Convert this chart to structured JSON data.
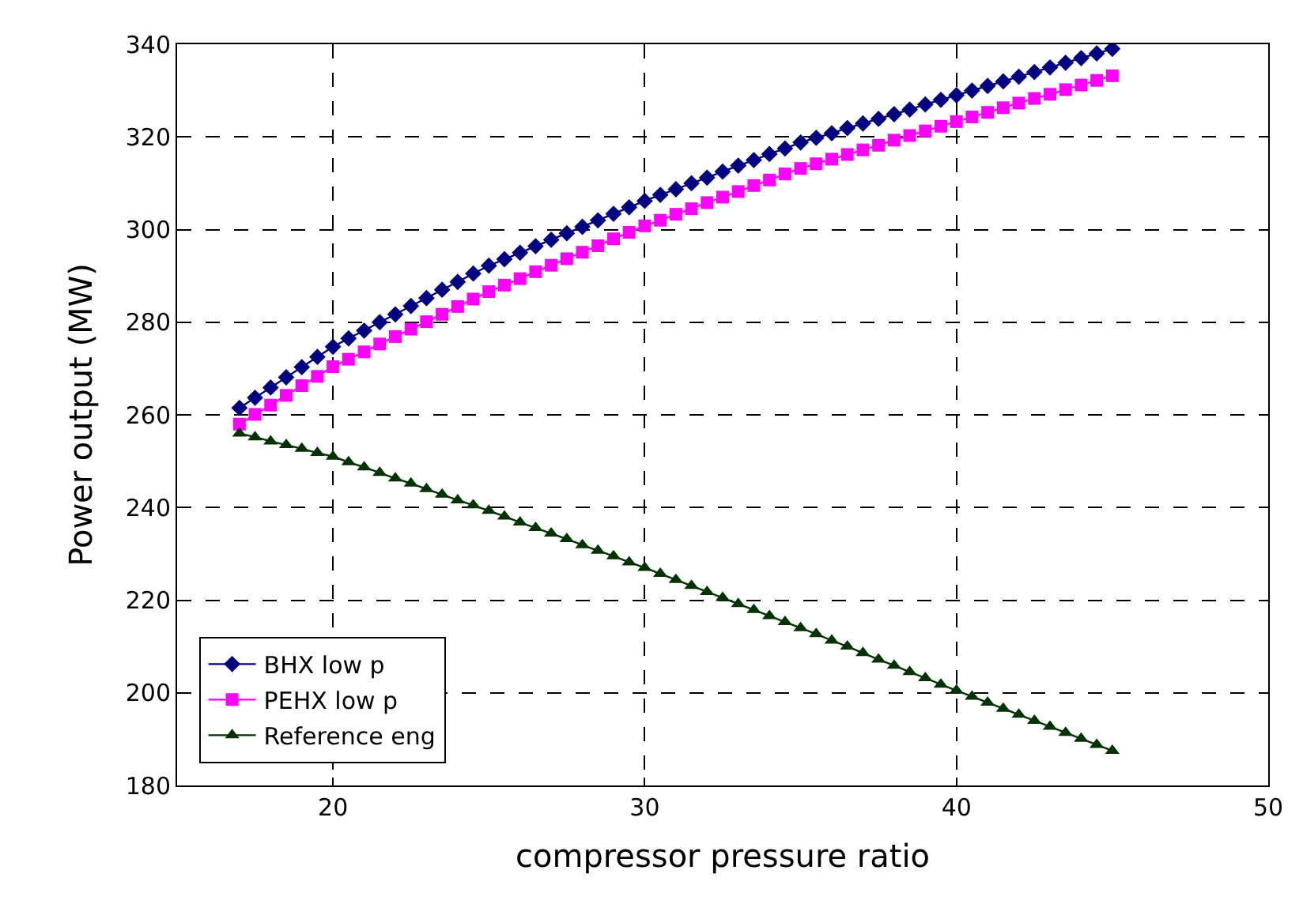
{
  "chart_data": {
    "type": "line",
    "xlabel": "compressor pressure ratio",
    "ylabel": "Power output (MW)",
    "x": [
      17,
      17.5,
      18,
      18.5,
      19,
      19.5,
      20,
      20.5,
      21,
      21.5,
      22,
      22.5,
      23,
      23.5,
      24,
      24.5,
      25,
      25.5,
      26,
      26.5,
      27,
      27.5,
      28,
      28.5,
      29,
      29.5,
      30,
      30.5,
      31,
      31.5,
      32,
      32.5,
      33,
      33.5,
      34,
      34.5,
      35,
      35.5,
      36,
      36.5,
      37,
      37.5,
      38,
      38.5,
      39,
      39.5,
      40,
      40.5,
      41,
      41.5,
      42,
      42.5,
      43,
      43.5,
      44,
      44.5,
      45
    ],
    "series": [
      {
        "name": "BHX low p",
        "color": "#000080",
        "marker": "diamond",
        "values": [
          261.5,
          263.7,
          265.9,
          268.1,
          270.3,
          272.5,
          274.7,
          276.5,
          278.2,
          280.0,
          281.7,
          283.5,
          285.2,
          287.0,
          288.7,
          290.5,
          292.2,
          293.6,
          295.0,
          296.4,
          297.8,
          299.2,
          300.6,
          302.0,
          303.4,
          304.8,
          306.2,
          307.5,
          308.7,
          310.0,
          311.2,
          312.5,
          313.8,
          315.0,
          316.3,
          317.5,
          318.8,
          319.8,
          320.8,
          321.9,
          322.9,
          323.9,
          324.9,
          325.9,
          327.0,
          328.0,
          329.0,
          330,
          331,
          332,
          333,
          334,
          335,
          336,
          337,
          338,
          339
        ]
      },
      {
        "name": "PEHX low p",
        "color": "#ff00ff",
        "marker": "square",
        "values": [
          258,
          260.1,
          262.1,
          264.2,
          266.3,
          268.3,
          270.4,
          272.0,
          273.6,
          275.3,
          276.9,
          278.5,
          280.1,
          281.7,
          283.4,
          285.0,
          286.6,
          288.0,
          289.4,
          290.9,
          292.3,
          293.7,
          295.1,
          296.5,
          298.0,
          299.4,
          300.8,
          302.0,
          303.3,
          304.5,
          305.8,
          307.0,
          308.2,
          309.5,
          310.7,
          312.0,
          313.2,
          314.2,
          315.2,
          316.2,
          317.2,
          318.2,
          319.3,
          320.3,
          321.3,
          322.3,
          323.3,
          324.3,
          325.3,
          326.3,
          327.3,
          328.3,
          329.2,
          330.2,
          331.2,
          332.2,
          333.2
        ]
      },
      {
        "name": "Reference eng",
        "color": "#003300",
        "marker": "triangle",
        "values": [
          256,
          255.2,
          254.3,
          253.5,
          252.7,
          251.8,
          251.0,
          249.8,
          248.7,
          247.5,
          246.3,
          245.2,
          244.0,
          242.8,
          241.6,
          240.5,
          239.3,
          238.1,
          236.8,
          235.6,
          234.4,
          233.2,
          231.9,
          230.7,
          229.5,
          228.2,
          227.0,
          225.7,
          224.4,
          223.1,
          221.8,
          220.5,
          219.2,
          217.9,
          216.6,
          215.3,
          214.0,
          212.7,
          211.3,
          210.0,
          208.6,
          207.2,
          205.9,
          204.5,
          203.2,
          201.8,
          200.5,
          199.2,
          197.9,
          196.6,
          195.3,
          194.0,
          192.7,
          191.4,
          190.1,
          188.8,
          187.5
        ]
      }
    ],
    "xlim": [
      15,
      50
    ],
    "xticks": [
      20,
      30,
      40,
      50
    ],
    "ylim": [
      180,
      340
    ],
    "yticks": [
      180,
      200,
      220,
      240,
      260,
      280,
      300,
      320,
      340
    ],
    "grid": true,
    "legend": "bottom left",
    "line_style": "solid"
  }
}
